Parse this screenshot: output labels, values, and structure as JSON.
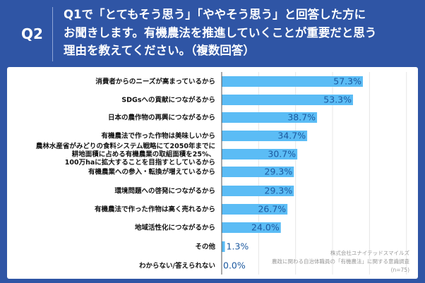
{
  "header": {
    "question_number": "Q2",
    "title_lines": [
      "Q1で「とてもそう思う」「ややそう思う」と回答した方に",
      "お聞きします。有機農法を推進していくことが重要だと思う",
      "理由を教えてください。（複数回答）"
    ]
  },
  "source": {
    "company": "株式会社ユナイテッドスマイルズ",
    "survey": "農政に関わる自治体職員の「有機農法」に関する意識調査",
    "n": "(n=75)"
  },
  "chart_data": {
    "type": "bar",
    "orientation": "horizontal",
    "categories": [
      [
        "消費者からのニーズが高まっているから"
      ],
      [
        "SDGsへの貢献につながるから"
      ],
      [
        "日本の農作物の再興につながるから"
      ],
      [
        "有機農法で作った作物は美味しいから"
      ],
      [
        "農林水産省がみどりの食料システム戦略にて2050年までに",
        "耕地面積に占める有機農業の取組面積を25%、",
        "100万haに拡大することを目指すとしているから"
      ],
      [
        "有機農業への参入・転換が増えているから"
      ],
      [
        "環境問題への啓発につながるから"
      ],
      [
        "有機農法で作った作物は高く売れるから"
      ],
      [
        "地域活性化につながるから"
      ],
      [
        "その他"
      ],
      [
        "わからない/答えられない"
      ]
    ],
    "values": [
      57.3,
      53.3,
      38.7,
      34.7,
      30.7,
      29.3,
      29.3,
      26.7,
      24.0,
      1.3,
      0.0
    ],
    "value_labels": [
      "57.3%",
      "53.3%",
      "38.7%",
      "34.7%",
      "30.7%",
      "29.3%",
      "29.3%",
      "26.7%",
      "24.0%",
      "1.3%",
      "0.0%"
    ],
    "unit": "%",
    "xlim": [
      0,
      80
    ],
    "grid": true,
    "bar_color": "#5bbcf5",
    "value_color": "#1d5aa0"
  }
}
